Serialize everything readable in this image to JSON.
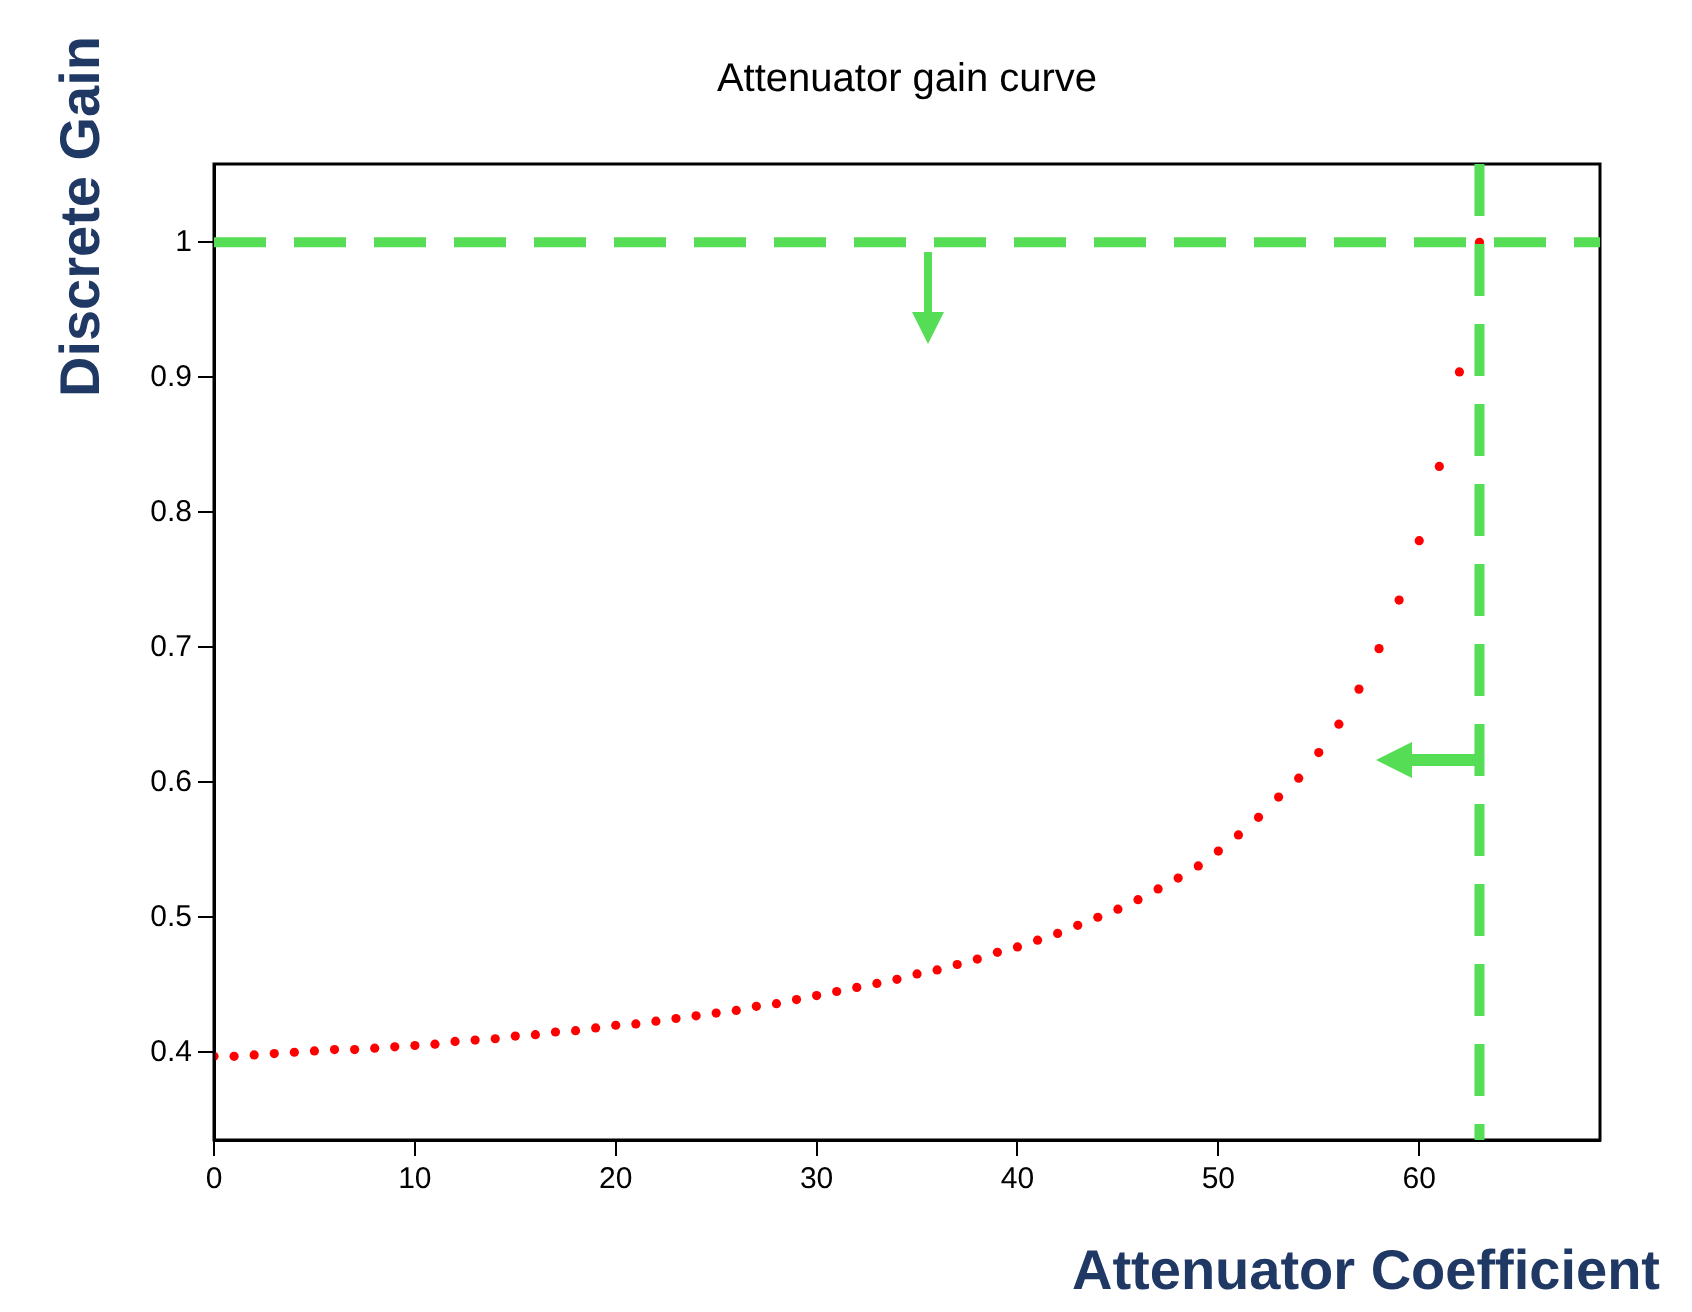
{
  "chart_data": {
    "type": "scatter",
    "title": "Attenuator gain curve",
    "xlabel": "Attenuator Coefficient",
    "ylabel": "Discrete Gain",
    "x": [
      0,
      1,
      2,
      3,
      4,
      5,
      6,
      7,
      8,
      9,
      10,
      11,
      12,
      13,
      14,
      15,
      16,
      17,
      18,
      19,
      20,
      21,
      22,
      23,
      24,
      25,
      26,
      27,
      28,
      29,
      30,
      31,
      32,
      33,
      34,
      35,
      36,
      37,
      38,
      39,
      40,
      41,
      42,
      43,
      44,
      45,
      46,
      47,
      48,
      49,
      50,
      51,
      52,
      53,
      54,
      55,
      56,
      57,
      58,
      59,
      60,
      61,
      62,
      63
    ],
    "series": [
      {
        "color": "#ff0000",
        "values": [
          0.397,
          0.397,
          0.398,
          0.399,
          0.4,
          0.401,
          0.402,
          0.402,
          0.403,
          0.404,
          0.405,
          0.406,
          0.408,
          0.409,
          0.41,
          0.412,
          0.413,
          0.415,
          0.416,
          0.418,
          0.42,
          0.421,
          0.423,
          0.425,
          0.427,
          0.429,
          0.431,
          0.434,
          0.436,
          0.439,
          0.442,
          0.445,
          0.448,
          0.451,
          0.454,
          0.458,
          0.461,
          0.465,
          0.469,
          0.474,
          0.478,
          0.483,
          0.488,
          0.494,
          0.5,
          0.506,
          0.513,
          0.521,
          0.529,
          0.538,
          0.549,
          0.561,
          0.574,
          0.589,
          0.603,
          0.622,
          0.643,
          0.669,
          0.699,
          0.735,
          0.779,
          0.834,
          0.904,
          1.0
        ]
      }
    ],
    "xlim": [
      0,
      69
    ],
    "xticks": [
      0,
      10,
      20,
      30,
      40,
      50,
      60
    ],
    "ylim": [
      0.335,
      1.058
    ],
    "yticks": [
      0.4,
      0.5,
      0.6,
      0.7,
      0.8,
      0.9,
      1
    ],
    "grid": false,
    "legend": false,
    "marker": "circle",
    "ref_lines": [
      {
        "axis": "x",
        "value": 63,
        "color": "#55dd55",
        "line_style": "dashed"
      },
      {
        "axis": "y",
        "value": 1,
        "color": "#55dd55",
        "line_style": "dashed"
      }
    ]
  }
}
